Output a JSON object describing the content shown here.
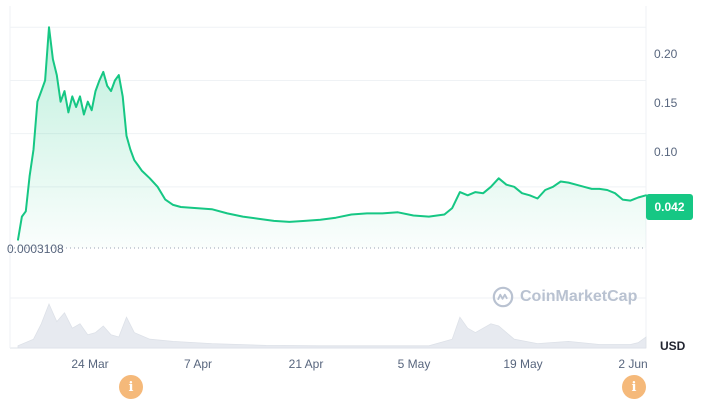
{
  "chart_data": {
    "type": "area",
    "currency": "USD",
    "current_price_label": "0.042",
    "baseline_label": "0.0003108",
    "ylim": [
      0,
      0.22
    ],
    "y_ticks": [
      "0.20",
      "0.15",
      "0.10"
    ],
    "x_ticks": [
      "24 Mar",
      "7 Apr",
      "21 Apr",
      "5 May",
      "19 May",
      "2 Jun"
    ],
    "x_range": [
      "2024-03-14",
      "2024-06-03"
    ],
    "series": [
      {
        "points": [
          [
            "2024-03-14",
            0.0003
          ],
          [
            "2024-03-14T12:00",
            0.022
          ],
          [
            "2024-03-15",
            0.027
          ],
          [
            "2024-03-15T12:00",
            0.06
          ],
          [
            "2024-03-16",
            0.085
          ],
          [
            "2024-03-16T12:00",
            0.13
          ],
          [
            "2024-03-17",
            0.14
          ],
          [
            "2024-03-17T12:00",
            0.15
          ],
          [
            "2024-03-18",
            0.2
          ],
          [
            "2024-03-18T12:00",
            0.17
          ],
          [
            "2024-03-19",
            0.155
          ],
          [
            "2024-03-19T12:00",
            0.13
          ],
          [
            "2024-03-20",
            0.14
          ],
          [
            "2024-03-20T12:00",
            0.12
          ],
          [
            "2024-03-21",
            0.135
          ],
          [
            "2024-03-21T12:00",
            0.125
          ],
          [
            "2024-03-22",
            0.135
          ],
          [
            "2024-03-22T12:00",
            0.118
          ],
          [
            "2024-03-23",
            0.13
          ],
          [
            "2024-03-23T12:00",
            0.122
          ],
          [
            "2024-03-24",
            0.14
          ],
          [
            "2024-03-24T12:00",
            0.15
          ],
          [
            "2024-03-25",
            0.158
          ],
          [
            "2024-03-25T12:00",
            0.145
          ],
          [
            "2024-03-26",
            0.14
          ],
          [
            "2024-03-26T12:00",
            0.15
          ],
          [
            "2024-03-27",
            0.155
          ],
          [
            "2024-03-27T12:00",
            0.135
          ],
          [
            "2024-03-28",
            0.098
          ],
          [
            "2024-03-28T12:00",
            0.085
          ],
          [
            "2024-03-29",
            0.075
          ],
          [
            "2024-03-29T12:00",
            0.07
          ],
          [
            "2024-03-30",
            0.065
          ],
          [
            "2024-03-31",
            0.058
          ],
          [
            "2024-04-01",
            0.05
          ],
          [
            "2024-04-02",
            0.038
          ],
          [
            "2024-04-03",
            0.033
          ],
          [
            "2024-04-04",
            0.031
          ],
          [
            "2024-04-06",
            0.03
          ],
          [
            "2024-04-08",
            0.029
          ],
          [
            "2024-04-10",
            0.025
          ],
          [
            "2024-04-12",
            0.022
          ],
          [
            "2024-04-14",
            0.02
          ],
          [
            "2024-04-16",
            0.018
          ],
          [
            "2024-04-18",
            0.017
          ],
          [
            "2024-04-20",
            0.018
          ],
          [
            "2024-04-22",
            0.019
          ],
          [
            "2024-04-24",
            0.021
          ],
          [
            "2024-04-26",
            0.024
          ],
          [
            "2024-04-28",
            0.025
          ],
          [
            "2024-04-30",
            0.025
          ],
          [
            "2024-05-02",
            0.026
          ],
          [
            "2024-05-04",
            0.023
          ],
          [
            "2024-05-06",
            0.022
          ],
          [
            "2024-05-08",
            0.024
          ],
          [
            "2024-05-09",
            0.03
          ],
          [
            "2024-05-10",
            0.045
          ],
          [
            "2024-05-11",
            0.042
          ],
          [
            "2024-05-12",
            0.045
          ],
          [
            "2024-05-13",
            0.044
          ],
          [
            "2024-05-14",
            0.05
          ],
          [
            "2024-05-15",
            0.058
          ],
          [
            "2024-05-16",
            0.052
          ],
          [
            "2024-05-17",
            0.05
          ],
          [
            "2024-05-18",
            0.044
          ],
          [
            "2024-05-19",
            0.042
          ],
          [
            "2024-05-20",
            0.039
          ],
          [
            "2024-05-21",
            0.047
          ],
          [
            "2024-05-22",
            0.05
          ],
          [
            "2024-05-23",
            0.055
          ],
          [
            "2024-05-24",
            0.054
          ],
          [
            "2024-05-25",
            0.052
          ],
          [
            "2024-05-26",
            0.05
          ],
          [
            "2024-05-27",
            0.048
          ],
          [
            "2024-05-28",
            0.048
          ],
          [
            "2024-05-29",
            0.047
          ],
          [
            "2024-05-30",
            0.044
          ],
          [
            "2024-05-31",
            0.038
          ],
          [
            "2024-06-01",
            0.037
          ],
          [
            "2024-06-02",
            0.04
          ],
          [
            "2024-06-03",
            0.042
          ]
        ]
      }
    ],
    "volume": [
      [
        "2024-03-14",
        0.05
      ],
      [
        "2024-03-16",
        0.2
      ],
      [
        "2024-03-17",
        0.55
      ],
      [
        "2024-03-18",
        1.0
      ],
      [
        "2024-03-19",
        0.6
      ],
      [
        "2024-03-20",
        0.8
      ],
      [
        "2024-03-21",
        0.45
      ],
      [
        "2024-03-22",
        0.55
      ],
      [
        "2024-03-23",
        0.3
      ],
      [
        "2024-03-24",
        0.35
      ],
      [
        "2024-03-25",
        0.5
      ],
      [
        "2024-03-26",
        0.3
      ],
      [
        "2024-03-27",
        0.25
      ],
      [
        "2024-03-28",
        0.7
      ],
      [
        "2024-03-29",
        0.35
      ],
      [
        "2024-03-31",
        0.2
      ],
      [
        "2024-04-03",
        0.15
      ],
      [
        "2024-04-08",
        0.1
      ],
      [
        "2024-04-15",
        0.06
      ],
      [
        "2024-04-22",
        0.05
      ],
      [
        "2024-04-29",
        0.05
      ],
      [
        "2024-05-06",
        0.05
      ],
      [
        "2024-05-09",
        0.2
      ],
      [
        "2024-05-10",
        0.7
      ],
      [
        "2024-05-11",
        0.45
      ],
      [
        "2024-05-12",
        0.35
      ],
      [
        "2024-05-14",
        0.55
      ],
      [
        "2024-05-15",
        0.5
      ],
      [
        "2024-05-17",
        0.2
      ],
      [
        "2024-05-20",
        0.1
      ],
      [
        "2024-05-24",
        0.15
      ],
      [
        "2024-05-28",
        0.08
      ],
      [
        "2024-06-01",
        0.08
      ],
      [
        "2024-06-02",
        0.12
      ],
      [
        "2024-06-03",
        0.25
      ]
    ],
    "grid": true,
    "colors": {
      "line": "#16c784",
      "volume": "#e7eaf0",
      "grid": "#eff2f5",
      "badge": "#16c784",
      "event": "#f5b97a"
    }
  },
  "watermark": {
    "text": "CoinMarketCap"
  },
  "events": [
    {
      "icon": "info-icon",
      "glyph": "i",
      "date": "2024-03-25"
    },
    {
      "icon": "info-icon",
      "glyph": "i",
      "date": "2024-06-03"
    }
  ]
}
